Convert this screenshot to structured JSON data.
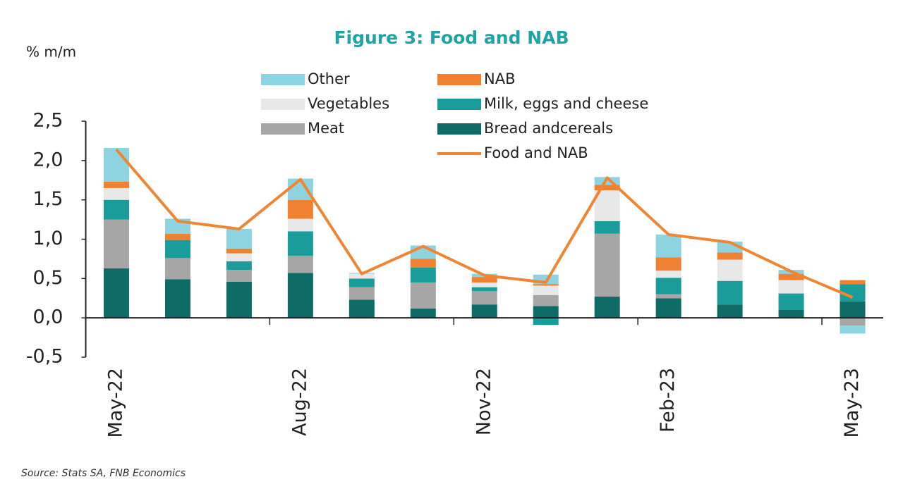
{
  "chart_data": {
    "type": "bar",
    "stacked": true,
    "title": "Figure 3: Food and NAB",
    "y_label": "% m/m",
    "source": "Source: Stats SA, FNB Economics",
    "categories": [
      "May-22",
      null,
      null,
      "Aug-22",
      null,
      null,
      "Nov-22",
      null,
      null,
      "Feb-23",
      null,
      null,
      "May-23"
    ],
    "ylim": [
      -0.5,
      2.5
    ],
    "yticks": [
      {
        "value": -0.5,
        "label": "-0,5"
      },
      {
        "value": 0,
        "label": "0,0"
      },
      {
        "value": 0.5,
        "label": "0,5"
      },
      {
        "value": 1,
        "label": "1,0"
      },
      {
        "value": 1.5,
        "label": "1,5"
      },
      {
        "value": 2,
        "label": "2,0"
      },
      {
        "value": 2.5,
        "label": "2,5"
      }
    ],
    "series": [
      {
        "name": "Bread andcereals",
        "color": "#0e6b66",
        "values": [
          0.63,
          0.49,
          0.46,
          0.57,
          0.23,
          0.12,
          0.17,
          0.15,
          0.27,
          0.25,
          0.17,
          0.1,
          0.21
        ]
      },
      {
        "name": "Meat",
        "color": "#a6a6a6",
        "values": [
          0.62,
          0.27,
          0.15,
          0.22,
          0.16,
          0.33,
          0.17,
          0.14,
          0.8,
          0.05,
          0,
          0,
          -0.1
        ]
      },
      {
        "name": "Milk, eggs and cheese",
        "color": "#1a9c9a",
        "values": [
          0.25,
          0.23,
          0.11,
          0.31,
          0.11,
          0.19,
          0.05,
          -0.09,
          0.16,
          0.21,
          0.3,
          0.21,
          0.22
        ]
      },
      {
        "name": "Vegetables",
        "color": "#e8e8e8",
        "values": [
          0.15,
          0,
          0.1,
          0.16,
          0.06,
          0,
          0.06,
          0.12,
          0.39,
          0.09,
          0.27,
          0.17,
          0
        ]
      },
      {
        "name": "NAB",
        "color": "#f08132",
        "values": [
          0.08,
          0.08,
          0.06,
          0.24,
          0,
          0.11,
          0.07,
          0.02,
          0.07,
          0.17,
          0.09,
          0.08,
          0.05
        ]
      },
      {
        "name": "Other",
        "color": "#8dd3e0",
        "values": [
          0.43,
          0.19,
          0.25,
          0.27,
          0.01,
          0.17,
          0.04,
          0.12,
          0.1,
          0.29,
          0.14,
          0.05,
          -0.1
        ]
      },
      {
        "name": "Food and NAB",
        "color": "#ef8636",
        "type": "line",
        "values": [
          2.14,
          1.23,
          1.13,
          1.76,
          0.56,
          0.91,
          0.54,
          0.45,
          1.78,
          1.06,
          0.96,
          0.59,
          0.26
        ]
      }
    ]
  }
}
